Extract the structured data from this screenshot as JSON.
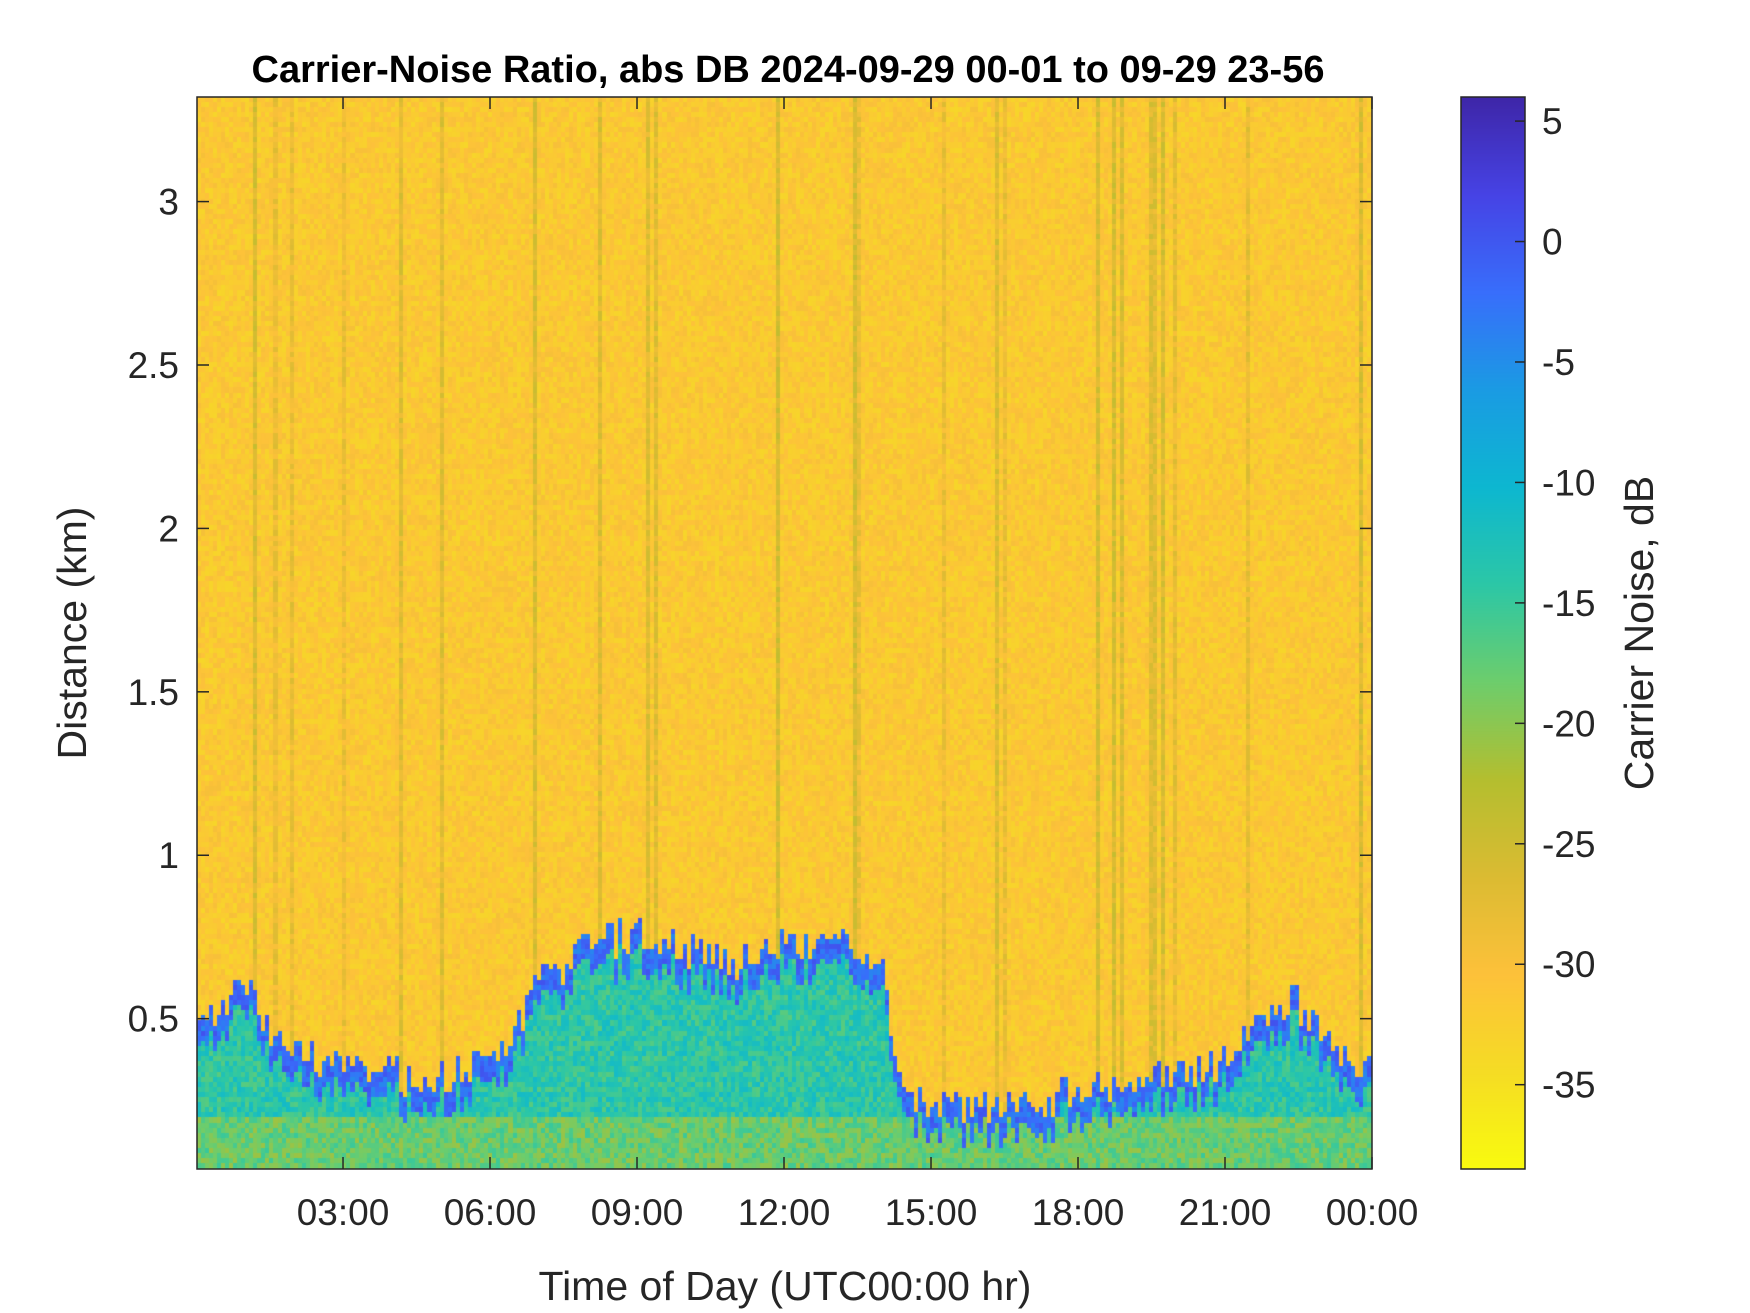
{
  "chart_data": {
    "type": "heatmap",
    "title": "Carrier-Noise Ratio, abs DB 2024-09-29 00-01 to 09-29 23-56",
    "xlabel": "Time of Day (UTC00:00 hr)",
    "ylabel": "Distance (km)",
    "colorbar_label": "Carrier Noise, dB",
    "x_range_hours": [
      0.02,
      24.0
    ],
    "y_range_km": [
      0.04,
      3.32
    ],
    "color_range_db": [
      -38.5,
      6
    ],
    "x_ticks": [
      {
        "value": 3,
        "label": "03:00"
      },
      {
        "value": 6,
        "label": "06:00"
      },
      {
        "value": 9,
        "label": "09:00"
      },
      {
        "value": 12,
        "label": "12:00"
      },
      {
        "value": 15,
        "label": "15:00"
      },
      {
        "value": 18,
        "label": "18:00"
      },
      {
        "value": 21,
        "label": "21:00"
      },
      {
        "value": 24,
        "label": "00:00"
      }
    ],
    "y_ticks": [
      {
        "value": 0.5,
        "label": "0.5"
      },
      {
        "value": 1,
        "label": "1"
      },
      {
        "value": 1.5,
        "label": "1.5"
      },
      {
        "value": 2,
        "label": "2"
      },
      {
        "value": 2.5,
        "label": "2.5"
      },
      {
        "value": 3,
        "label": "3"
      }
    ],
    "colorbar_ticks": [
      {
        "value": 5,
        "label": "5"
      },
      {
        "value": 0,
        "label": "0"
      },
      {
        "value": -5,
        "label": "-5"
      },
      {
        "value": -10,
        "label": "-10"
      },
      {
        "value": -15,
        "label": "-15"
      },
      {
        "value": -20,
        "label": "-20"
      },
      {
        "value": -25,
        "label": "-25"
      },
      {
        "value": -30,
        "label": "-30"
      },
      {
        "value": -35,
        "label": "-35"
      }
    ],
    "colormap": "parula_reversed",
    "background_level_db": -31.5,
    "boundary_layer_top_km": [
      {
        "hour": 0.0,
        "km": 0.55
      },
      {
        "hour": 0.5,
        "km": 0.5
      },
      {
        "hour": 1.0,
        "km": 0.62
      },
      {
        "hour": 1.5,
        "km": 0.48
      },
      {
        "hour": 2.0,
        "km": 0.4
      },
      {
        "hour": 3.0,
        "km": 0.36
      },
      {
        "hour": 4.0,
        "km": 0.32
      },
      {
        "hour": 5.0,
        "km": 0.33
      },
      {
        "hour": 6.0,
        "km": 0.38
      },
      {
        "hour": 6.5,
        "km": 0.45
      },
      {
        "hour": 7.0,
        "km": 0.6
      },
      {
        "hour": 8.0,
        "km": 0.72
      },
      {
        "hour": 9.0,
        "km": 0.76
      },
      {
        "hour": 10.0,
        "km": 0.7
      },
      {
        "hour": 11.0,
        "km": 0.68
      },
      {
        "hour": 12.0,
        "km": 0.74
      },
      {
        "hour": 13.0,
        "km": 0.72
      },
      {
        "hour": 14.0,
        "km": 0.7
      },
      {
        "hour": 14.3,
        "km": 0.4
      },
      {
        "hour": 14.6,
        "km": 0.25
      },
      {
        "hour": 16.0,
        "km": 0.22
      },
      {
        "hour": 17.0,
        "km": 0.24
      },
      {
        "hour": 18.0,
        "km": 0.28
      },
      {
        "hour": 19.0,
        "km": 0.3
      },
      {
        "hour": 20.0,
        "km": 0.32
      },
      {
        "hour": 21.0,
        "km": 0.36
      },
      {
        "hour": 22.0,
        "km": 0.52
      },
      {
        "hour": 22.5,
        "km": 0.55
      },
      {
        "hour": 23.0,
        "km": 0.45
      },
      {
        "hour": 23.5,
        "km": 0.38
      },
      {
        "hour": 24.0,
        "km": 0.34
      }
    ]
  }
}
